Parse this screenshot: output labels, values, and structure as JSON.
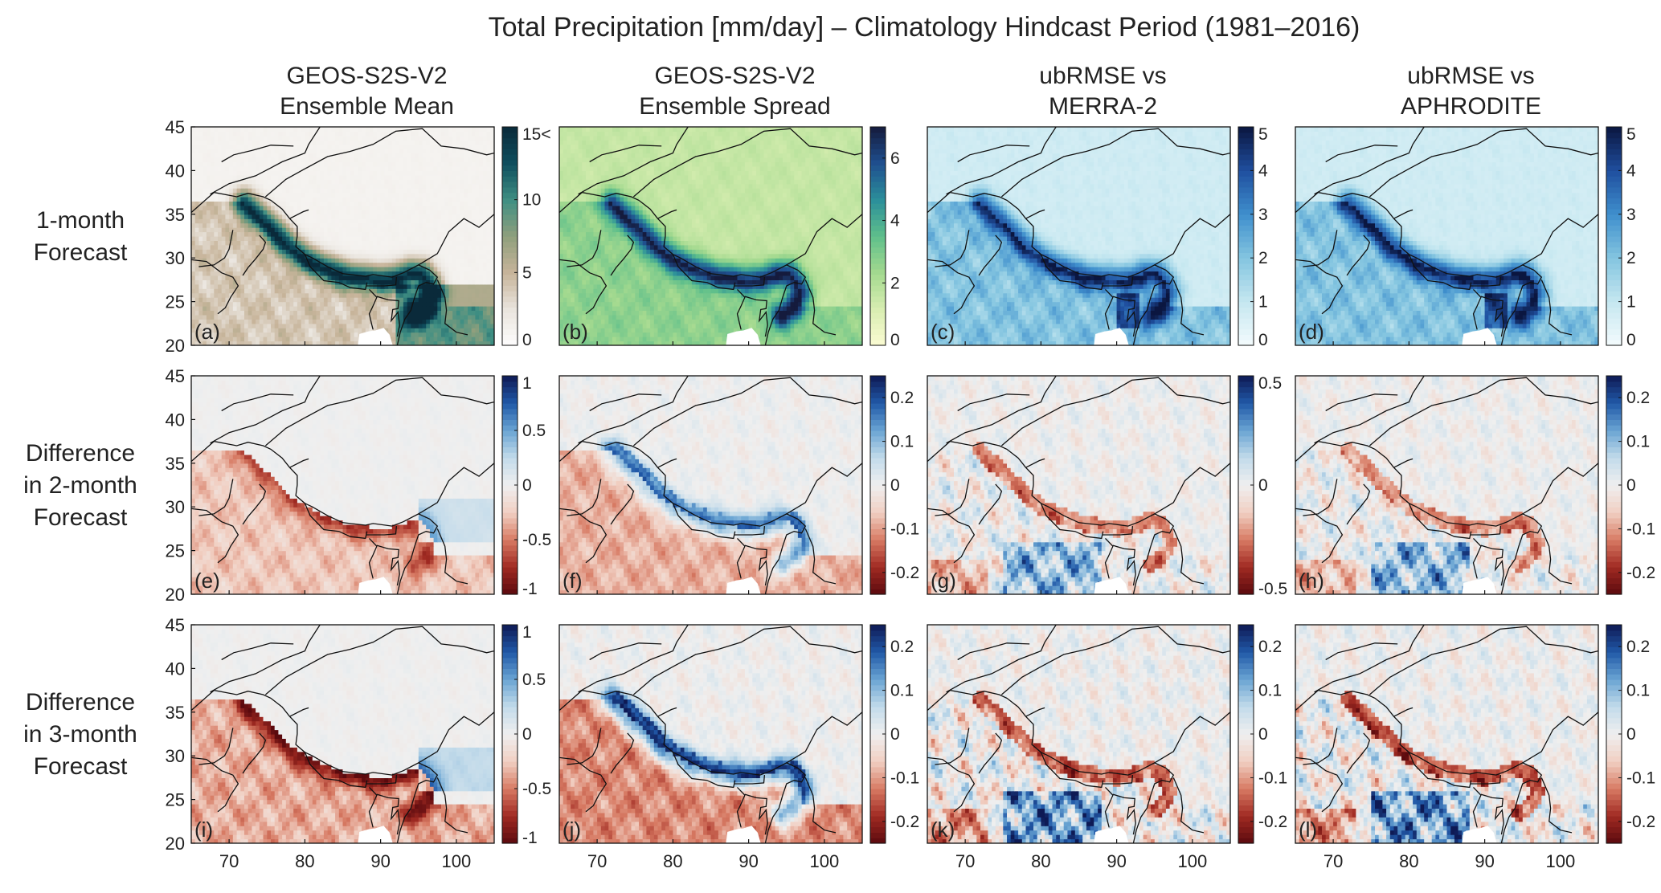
{
  "title": "Total Precipitation [mm/day] – Climatology Hindcast Period (1981–2016)",
  "column_titles": [
    [
      "GEOS-S2S-V2",
      "Ensemble Mean"
    ],
    [
      "GEOS-S2S-V2",
      "Ensemble Spread"
    ],
    [
      "ubRMSE vs",
      "MERRA-2"
    ],
    [
      "ubRMSE vs",
      "APHRODITE"
    ]
  ],
  "row_labels": [
    [
      "1-month",
      "Forecast"
    ],
    [
      "Difference",
      "in 2-month",
      "Forecast"
    ],
    [
      "Difference",
      "in 3-month",
      "Forecast"
    ]
  ],
  "chart_data": {
    "type": "heatmap",
    "description_kind": "small-multiple gridded maps",
    "x_axis": {
      "ticks": [
        70,
        80,
        90,
        100
      ],
      "lim": [
        65,
        105
      ]
    },
    "y_axis": {
      "ticks": [
        20,
        25,
        30,
        35,
        40,
        45
      ],
      "lim": [
        20,
        45
      ]
    },
    "panel_labels": [
      "(a)",
      "(b)",
      "(c)",
      "(d)",
      "(e)",
      "(f)",
      "(g)",
      "(h)",
      "(i)",
      "(j)",
      "(k)",
      "(l)"
    ],
    "colorbars": [
      [
        {
          "ticks": [
            "0",
            "5",
            "10",
            "15<"
          ],
          "lim": [
            0,
            15
          ],
          "scheme": "brown-white-teal"
        },
        {
          "ticks": [
            "0",
            "2",
            "4",
            "6"
          ],
          "lim": [
            0,
            7
          ],
          "scheme": "yellow-green-blue"
        },
        {
          "ticks": [
            "0",
            "1",
            "2",
            "3",
            "4",
            "5"
          ],
          "lim": [
            0,
            5
          ],
          "scheme": "white-blue-dark"
        },
        {
          "ticks": [
            "0",
            "1",
            "2",
            "3",
            "4",
            "5"
          ],
          "lim": [
            0,
            5
          ],
          "scheme": "white-blue-dark"
        }
      ],
      [
        {
          "ticks": [
            "-1",
            "-0.5",
            "0",
            "0.5",
            "1"
          ],
          "lim": [
            -1,
            1
          ],
          "scheme": "diverging"
        },
        {
          "ticks": [
            "-0.2",
            "-0.1",
            "0",
            "0.1",
            "0.2"
          ],
          "lim": [
            -0.25,
            0.25
          ],
          "scheme": "diverging"
        },
        {
          "ticks": [
            "-0.5",
            "0",
            "0.5"
          ],
          "lim": [
            -0.5,
            0.5
          ],
          "scheme": "diverging"
        },
        {
          "ticks": [
            "-0.2",
            "-0.1",
            "0",
            "0.1",
            "0.2"
          ],
          "lim": [
            -0.25,
            0.25
          ],
          "scheme": "diverging"
        }
      ],
      [
        {
          "ticks": [
            "-1",
            "-0.5",
            "0",
            "0.5",
            "1"
          ],
          "lim": [
            -1,
            1
          ],
          "scheme": "diverging"
        },
        {
          "ticks": [
            "-0.2",
            "-0.1",
            "0",
            "0.1",
            "0.2"
          ],
          "lim": [
            -0.25,
            0.25
          ],
          "scheme": "diverging"
        },
        {
          "ticks": [
            "-0.2",
            "-0.1",
            "0",
            "0.1",
            "0.2"
          ],
          "lim": [
            -0.25,
            0.25
          ],
          "scheme": "diverging"
        },
        {
          "ticks": [
            "-0.2",
            "-0.1",
            "0",
            "0.1",
            "0.2"
          ],
          "lim": [
            -0.25,
            0.25
          ],
          "scheme": "diverging"
        }
      ]
    ],
    "colors": {
      "brown-white-teal": [
        "#fdfdfd",
        "#e9e4dd",
        "#c7b49a",
        "#8f9f7c",
        "#3f8f83",
        "#0f4e5e",
        "#0a2a3a"
      ],
      "yellow-green-blue": [
        "#fbfbd2",
        "#d8eeb1",
        "#a3d98f",
        "#5fbf8b",
        "#2b8f9a",
        "#1f4f8f",
        "#151b3d"
      ],
      "white-blue-dark": [
        "#f4fbfd",
        "#c5e7f0",
        "#84c5e0",
        "#3f8fcd",
        "#1f4f9f",
        "#0b1640"
      ],
      "diverging": [
        "#5b0a0e",
        "#a02a22",
        "#d77a63",
        "#f1cfc2",
        "#efefef",
        "#c3dbea",
        "#6aa5d3",
        "#2159a8",
        "#0e1a55"
      ]
    }
  }
}
